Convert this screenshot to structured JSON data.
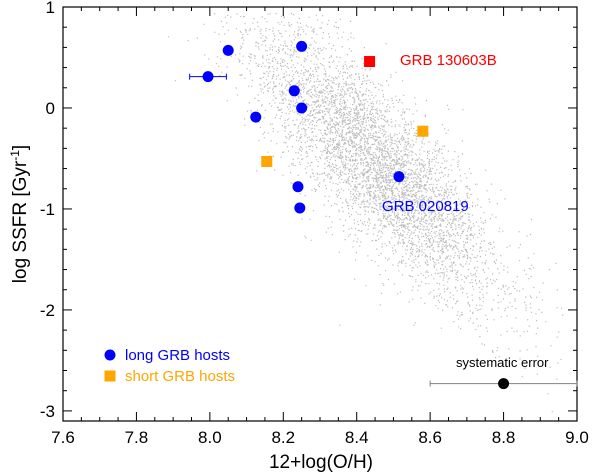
{
  "chart_data": {
    "type": "scatter",
    "title": "",
    "xlabel": "12+log(O/H)",
    "ylabel_main": "log SSFR [Gyr",
    "ylabel_sup": "-1",
    "ylabel_close": "]",
    "xlim": [
      7.6,
      9.0
    ],
    "ylim": [
      -3.1,
      1.0
    ],
    "x_ticks": [
      7.6,
      7.8,
      8.0,
      8.2,
      8.4,
      8.6,
      8.8,
      9.0
    ],
    "x_tick_labels": [
      "7.6",
      "7.8",
      "8.0",
      "8.2",
      "8.4",
      "8.6",
      "8.8",
      "9.0"
    ],
    "y_ticks": [
      1,
      0,
      -1,
      -2,
      -3
    ],
    "y_tick_labels": [
      "1",
      "0",
      "-1",
      "-2",
      "-3"
    ],
    "colors": {
      "background_cloud": "#bdbdbd",
      "long": "#0000ff",
      "short": "#ffa500",
      "highlight": "#ff0000",
      "error": "#000000",
      "error_bar": "#808080"
    },
    "background_cloud": {
      "description_count": 5000,
      "center_x": 8.45,
      "center_y": -0.55,
      "slope": -3.3
    },
    "series": [
      {
        "name": "long GRB hosts",
        "marker": "circle",
        "color": "#0000ff",
        "points": [
          {
            "x": 8.05,
            "y": 0.57
          },
          {
            "x": 8.25,
            "y": 0.61
          },
          {
            "x": 7.995,
            "y": 0.31,
            "xerr": 0.05
          },
          {
            "x": 8.23,
            "y": 0.17
          },
          {
            "x": 8.25,
            "y": 0.0
          },
          {
            "x": 8.125,
            "y": -0.09
          },
          {
            "x": 8.24,
            "y": -0.78
          },
          {
            "x": 8.245,
            "y": -0.99
          },
          {
            "x": 8.515,
            "y": -0.68
          }
        ]
      },
      {
        "name": "short GRB hosts",
        "marker": "square",
        "color": "#ffa500",
        "points": [
          {
            "x": 8.155,
            "y": -0.53
          },
          {
            "x": 8.58,
            "y": -0.23
          }
        ]
      },
      {
        "name": "GRB 130603B",
        "marker": "square",
        "color": "#ff0000",
        "points": [
          {
            "x": 8.435,
            "y": 0.46
          }
        ]
      }
    ],
    "systematic_error": {
      "x": 8.8,
      "y": -2.73,
      "xerr": 0.2,
      "label": "systematic error"
    },
    "annotations": [
      {
        "text": "GRB 130603B",
        "color": "#ff0000"
      },
      {
        "text": "GRB 020819",
        "color": "#0000ff"
      }
    ],
    "legend": {
      "position": "lower-left",
      "entries": [
        {
          "label": "long GRB hosts",
          "marker": "circle",
          "color": "#0000ff"
        },
        {
          "label": "short GRB hosts",
          "marker": "square",
          "color": "#ffa500"
        }
      ]
    }
  }
}
